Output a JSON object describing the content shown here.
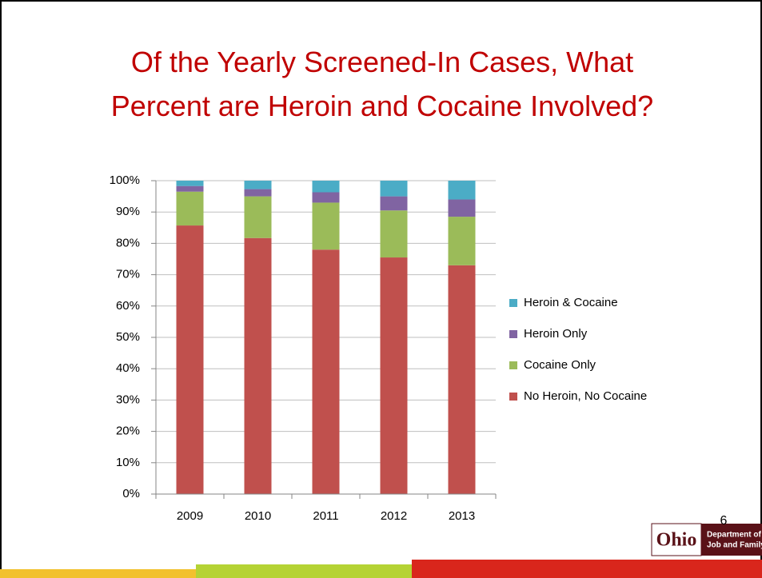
{
  "chart_data": {
    "type": "stacked_bar",
    "title": "Of the Yearly Screened-In Cases, What Percent are Heroin and Cocaine Involved?",
    "categories": [
      "2009",
      "2010",
      "2011",
      "2012",
      "2013"
    ],
    "series": [
      {
        "name": "No Heroin, No Cocaine",
        "color": "#c0504d",
        "values": [
          85.7,
          81.7,
          78,
          75.5,
          73
        ]
      },
      {
        "name": "Cocaine Only",
        "color": "#9bbb59",
        "values": [
          10.8,
          13.3,
          15,
          15,
          15.5
        ]
      },
      {
        "name": "Heroin Only",
        "color": "#8064a2",
        "values": [
          1.8,
          2.3,
          3.3,
          4.5,
          5.5
        ]
      },
      {
        "name": "Heroin & Cocaine",
        "color": "#4bacc6",
        "values": [
          1.7,
          2.7,
          3.7,
          5,
          6
        ]
      }
    ],
    "ylim": [
      0,
      100
    ],
    "yticks": [
      {
        "value": 0,
        "label": "0%"
      },
      {
        "value": 10,
        "label": "10%"
      },
      {
        "value": 20,
        "label": "20%"
      },
      {
        "value": 30,
        "label": "30%"
      },
      {
        "value": 40,
        "label": "40%"
      },
      {
        "value": 50,
        "label": "50%"
      },
      {
        "value": 60,
        "label": "60%"
      },
      {
        "value": 70,
        "label": "70%"
      },
      {
        "value": 80,
        "label": "80%"
      },
      {
        "value": 90,
        "label": "90%"
      },
      {
        "value": 100,
        "label": "100%"
      }
    ],
    "grid": true,
    "legend": "right"
  },
  "page_number": "6",
  "footer": {
    "logo": "Ohio",
    "line1": "Department of",
    "line2": "Job and Family Services"
  }
}
